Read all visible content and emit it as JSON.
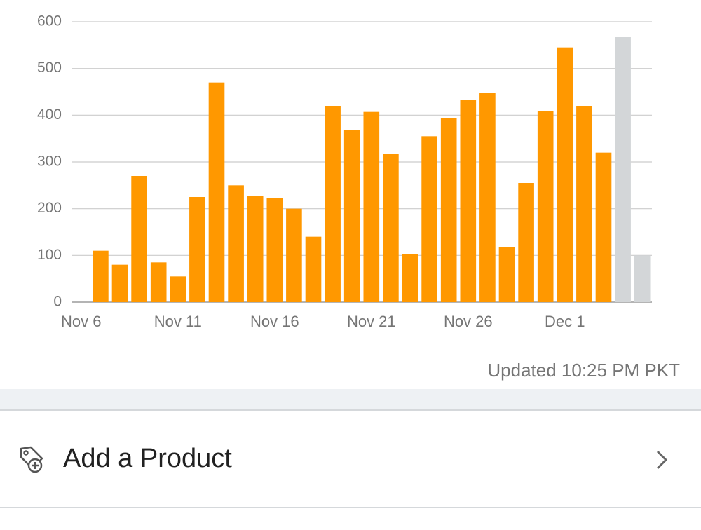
{
  "chart_data": {
    "type": "bar",
    "categories": [
      "Nov 6",
      null,
      null,
      null,
      null,
      "Nov 11",
      null,
      null,
      null,
      null,
      "Nov 16",
      null,
      null,
      null,
      null,
      "Nov 21",
      null,
      null,
      null,
      null,
      "Nov 26",
      null,
      null,
      null,
      null,
      "Dec 1",
      null,
      null,
      null,
      null
    ],
    "values": [
      null,
      110,
      80,
      270,
      85,
      55,
      225,
      470,
      250,
      227,
      222,
      200,
      140,
      420,
      368,
      407,
      318,
      103,
      355,
      393,
      433,
      448,
      118,
      255,
      408,
      545,
      420,
      320,
      567,
      100
    ],
    "colors": [
      "#ff9800",
      "#ff9800",
      "#ff9800",
      "#ff9800",
      "#ff9800",
      "#ff9800",
      "#ff9800",
      "#ff9800",
      "#ff9800",
      "#ff9800",
      "#ff9800",
      "#ff9800",
      "#ff9800",
      "#ff9800",
      "#ff9800",
      "#ff9800",
      "#ff9800",
      "#ff9800",
      "#ff9800",
      "#ff9800",
      "#ff9800",
      "#ff9800",
      "#ff9800",
      "#ff9800",
      "#ff9800",
      "#ff9800",
      "#ff9800",
      "#ff9800",
      "#d3d6d8",
      "#d3d6d8"
    ],
    "ylim": [
      0,
      600
    ],
    "yticks": [
      0,
      100,
      200,
      300,
      400,
      500,
      600
    ],
    "grid": true
  },
  "updated_note": "Updated 10:25 PM PKT",
  "menu_item": "Add a Product"
}
